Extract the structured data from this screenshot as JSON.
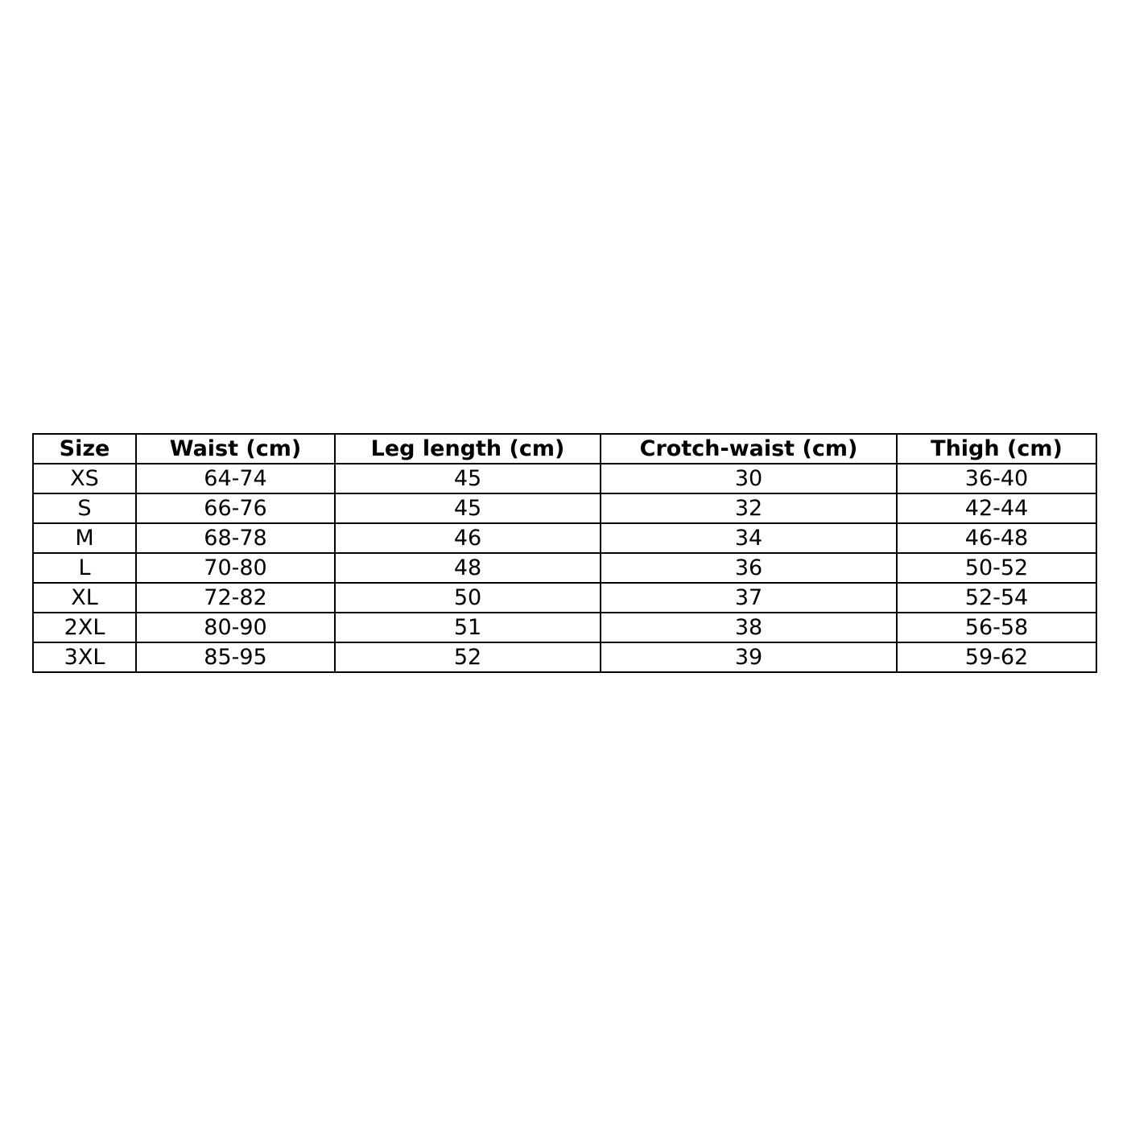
{
  "table": {
    "headers": [
      "Size",
      "Waist (cm)",
      "Leg length (cm)",
      "Crotch-waist (cm)",
      "Thigh (cm)"
    ],
    "rows": [
      [
        "XS",
        "64-74",
        "45",
        "30",
        "36-40"
      ],
      [
        "S",
        "66-76",
        "45",
        "32",
        "42-44"
      ],
      [
        "M",
        "68-78",
        "46",
        "34",
        "46-48"
      ],
      [
        "L",
        "70-80",
        "48",
        "36",
        "50-52"
      ],
      [
        "XL",
        "72-82",
        "50",
        "37",
        "52-54"
      ],
      [
        "2XL",
        "80-90",
        "51",
        "38",
        "56-58"
      ],
      [
        "3XL",
        "85-95",
        "52",
        "39",
        "59-62"
      ]
    ]
  }
}
